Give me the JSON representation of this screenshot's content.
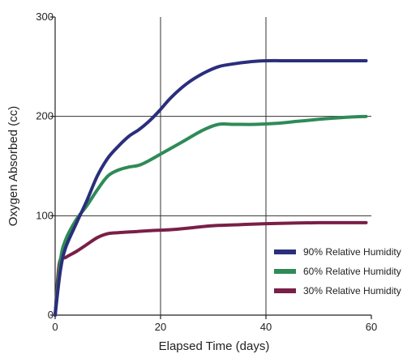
{
  "chart_data": {
    "type": "line",
    "xlabel": "Elapsed Time (days)",
    "ylabel": "Oxygen Absorbed (cc)",
    "xlim": [
      0,
      60
    ],
    "ylim": [
      0,
      300
    ],
    "x_ticks": [
      "0",
      "20",
      "40",
      "60"
    ],
    "y_ticks": [
      "0",
      "100",
      "200",
      "300"
    ],
    "x_grid": [
      20,
      40
    ],
    "y_grid": [
      100,
      200
    ],
    "legend_position": "bottom-right",
    "series": [
      {
        "name": "90% Relative Humidity",
        "color": "#2a2e7c",
        "points": [
          [
            0,
            0
          ],
          [
            1,
            45
          ],
          [
            2,
            68
          ],
          [
            4,
            92
          ],
          [
            6,
            115
          ],
          [
            8,
            140
          ],
          [
            10,
            158
          ],
          [
            12,
            170
          ],
          [
            14,
            180
          ],
          [
            16,
            187
          ],
          [
            18,
            196
          ],
          [
            20,
            207
          ],
          [
            22,
            219
          ],
          [
            25,
            233
          ],
          [
            28,
            243
          ],
          [
            31,
            250
          ],
          [
            34,
            253
          ],
          [
            37,
            255
          ],
          [
            40,
            256
          ],
          [
            45,
            256
          ],
          [
            50,
            256
          ],
          [
            55,
            256
          ],
          [
            59,
            256
          ]
        ]
      },
      {
        "name": "60% Relative Humidity",
        "color": "#2e8b57",
        "points": [
          [
            0,
            0
          ],
          [
            1,
            55
          ],
          [
            2,
            76
          ],
          [
            4,
            96
          ],
          [
            6,
            110
          ],
          [
            8,
            126
          ],
          [
            10,
            140
          ],
          [
            12,
            146
          ],
          [
            14,
            149
          ],
          [
            16,
            151
          ],
          [
            18,
            156
          ],
          [
            20,
            162
          ],
          [
            24,
            174
          ],
          [
            28,
            186
          ],
          [
            31,
            192
          ],
          [
            34,
            192
          ],
          [
            38,
            192
          ],
          [
            42,
            193
          ],
          [
            46,
            195
          ],
          [
            50,
            197
          ],
          [
            55,
            199
          ],
          [
            59,
            200
          ]
        ]
      },
      {
        "name": "30% Relative Humidity",
        "color": "#7a1f47",
        "points": [
          [
            0,
            0
          ],
          [
            0.8,
            52
          ],
          [
            2,
            58
          ],
          [
            4,
            64
          ],
          [
            6,
            71
          ],
          [
            8,
            78
          ],
          [
            10,
            82
          ],
          [
            12,
            83
          ],
          [
            15,
            84
          ],
          [
            18,
            85
          ],
          [
            22,
            86
          ],
          [
            26,
            88
          ],
          [
            30,
            90
          ],
          [
            35,
            91
          ],
          [
            40,
            92
          ],
          [
            50,
            93
          ],
          [
            59,
            93
          ]
        ]
      }
    ]
  }
}
